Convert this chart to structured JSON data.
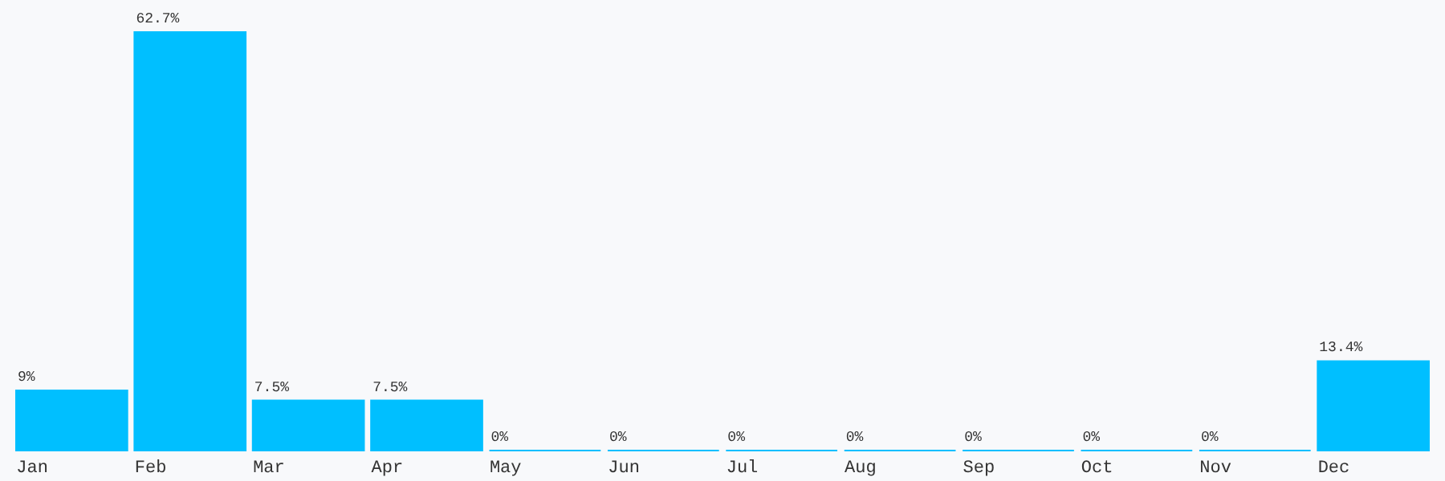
{
  "chart_data": {
    "type": "bar",
    "categories": [
      "Jan",
      "Feb",
      "Mar",
      "Apr",
      "May",
      "Jun",
      "Jul",
      "Aug",
      "Sep",
      "Oct",
      "Nov",
      "Dec"
    ],
    "values": [
      9,
      62.7,
      7.5,
      7.5,
      0,
      0,
      0,
      0,
      0,
      0,
      0,
      13.4
    ],
    "value_labels": [
      "9%",
      "62.7%",
      "7.5%",
      "7.5%",
      "0%",
      "0%",
      "0%",
      "0%",
      "0%",
      "0%",
      "0%",
      "13.4%"
    ],
    "color": "#00bfff",
    "grid": false
  }
}
